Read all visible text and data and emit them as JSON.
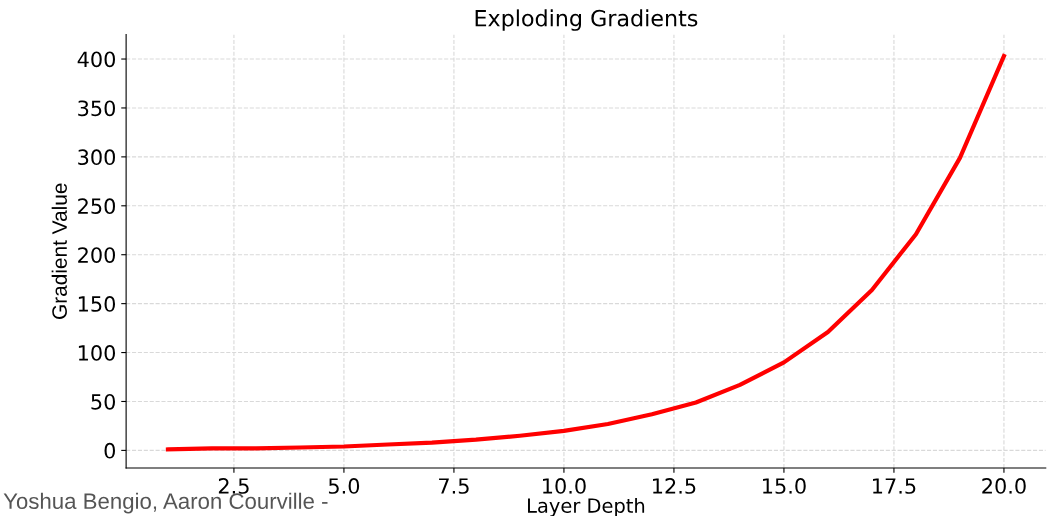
{
  "chart_data": {
    "type": "line",
    "title": "Exploding Gradients",
    "xlabel": "Layer Depth",
    "ylabel": "Gradient Value",
    "x": [
      1,
      2,
      3,
      4,
      5,
      6,
      7,
      8,
      9,
      10,
      11,
      12,
      13,
      14,
      15,
      16,
      17,
      18,
      19,
      20
    ],
    "series": [
      {
        "color": "#ff0000",
        "values": [
          1,
          2,
          2,
          3,
          4,
          6,
          8,
          11,
          15,
          20,
          27,
          37,
          49,
          67,
          90,
          121,
          164,
          221,
          299,
          403
        ]
      }
    ],
    "xlim": [
      0.05,
      20.95
    ],
    "ylim": [
      -18,
      425
    ],
    "xticks": [
      2.5,
      {
        "value": 5,
        "label": "5.0"
      },
      7.5,
      {
        "value": 10,
        "label": "10.0"
      },
      12.5,
      {
        "value": 15,
        "label": "15.0"
      },
      17.5,
      {
        "value": 20,
        "label": "20.0"
      }
    ],
    "yticks": [
      0,
      50,
      100,
      150,
      200,
      250,
      300,
      350,
      400
    ],
    "grid": true,
    "marker": "none",
    "line_style": "solid",
    "annotations": [
      "Yoshua Bengio, Aaron Courville -"
    ]
  }
}
